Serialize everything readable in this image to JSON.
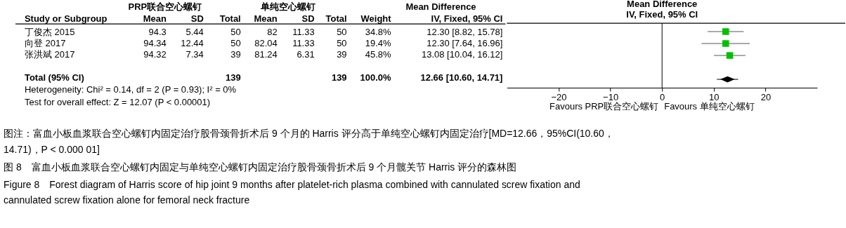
{
  "chart_data": [
    {
      "type": "other",
      "annotations": [
        "PRP联合空心螺钉",
        "单纯空心螺钉",
        "Mean Difference",
        "Study or Subgroup",
        "Mean",
        "SD",
        "Total",
        "Mean",
        "SD",
        "Total",
        "Weight",
        "IV, Fixed, 95% CI",
        "丁俊杰 2015",
        "94.3",
        "5.44",
        "50",
        "82",
        "11.33",
        "50",
        "34.8%",
        "12.30 [8.82, 15.78]",
        "向登  2017",
        "94.34",
        "12.44",
        "50",
        "82.04",
        "11.33",
        "50",
        "19.4%",
        "12.30 [7.64, 16.96]",
        "张洪斌 2017",
        "94.32",
        "7.34",
        "39",
        "81.24",
        "6.31",
        "39",
        "45.8%",
        "13.08 [10.04, 16.12]",
        "Total (95% CI)",
        "139",
        "139",
        "100.0%",
        "12.66 [10.60, 14.71]",
        "Heterogeneity: Chi² = 0.14, df = 2 (P = 0.93); I² = 0%",
        "Test for overall effect: Z = 12.07 (P < 0.00001)"
      ]
    },
    {
      "type": "scatter",
      "title": "Mean Difference",
      "subtitle": "IV, Fixed, 95% CI",
      "orientation": "horizontal",
      "categories": [
        null,
        null,
        null,
        null,
        null
      ],
      "series": [
        {
          "color": "#00c000",
          "marker": "square",
          "values": [
            12.3,
            12.3,
            13.08,
            null,
            null
          ],
          "errors": [
            [
              8.82,
              15.78
            ],
            [
              7.64,
              16.96
            ],
            [
              10.04,
              16.12
            ],
            null,
            null
          ]
        },
        {
          "color": "#000000",
          "marker": "diamond",
          "values": [
            null,
            null,
            null,
            null,
            12.66
          ],
          "errors": [
            null,
            null,
            null,
            null,
            [
              10.6,
              14.71
            ]
          ]
        }
      ],
      "xlim": [
        -30,
        30
      ],
      "xticks": [
        -20,
        -10,
        0,
        10,
        20
      ],
      "tick_labels": "x",
      "grid": false,
      "ref_lines": [
        {
          "axis": "x",
          "value": 0,
          "color": "#000000"
        }
      ],
      "annotations": [
        "Favours PRP联合空心螺钉",
        "Favours 单纯空心螺钉"
      ]
    },
    {
      "type": "other",
      "annotations": [
        "图注：富血小板血浆联合空心螺钉内固定治疗股骨颈骨折术后 9 个月的 Harris 评分高于单纯空心螺钉内固定治疗[MD=12.66，95%CI(10.60，",
        "14.71)，P < 0.000 01]",
        "图 8　富血小板血浆联合空心螺钉内固定与单纯空心螺钉内固定治疗股骨颈骨折术后 9 个月髋关节 Harris 评分的森林图",
        "Figure 8　Forest diagram of Harris score of hip joint 9 months after platelet-rich plasma combined with cannulated screw fixation and",
        "cannulated screw fixation alone for femoral neck fracture"
      ]
    }
  ]
}
